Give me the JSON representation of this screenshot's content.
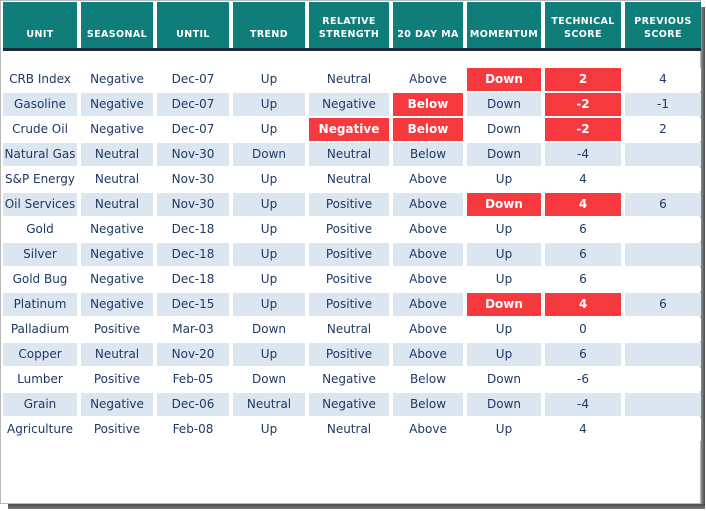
{
  "chart_data": {
    "type": "table",
    "title": "Commodity seasonal / technical score table",
    "columns": [
      {
        "id": "unit",
        "label": "UNIT"
      },
      {
        "id": "seasonal",
        "label": "SEASONAL"
      },
      {
        "id": "until",
        "label": "UNTIL"
      },
      {
        "id": "trend",
        "label": "TREND"
      },
      {
        "id": "relative-strength",
        "label": "RELATIVE\nSTRENGTH"
      },
      {
        "id": "20-day-ma",
        "label": "20 DAY MA"
      },
      {
        "id": "momentum",
        "label": "MOMENTUM"
      },
      {
        "id": "technical-score",
        "label": "TECHNICAL\nSCORE"
      },
      {
        "id": "previous-score",
        "label": "PREVIOUS\nSCORE"
      }
    ],
    "rows": [
      {
        "values": [
          "CRB Index",
          "Negative",
          "Dec-07",
          "Up",
          "Neutral",
          "Above",
          "Down",
          "2",
          "4"
        ],
        "red": [
          6,
          7
        ]
      },
      {
        "values": [
          "Gasoline",
          "Negative",
          "Dec-07",
          "Up",
          "Negative",
          "Below",
          "Down",
          "-2",
          "-1"
        ],
        "red": [
          5,
          7
        ]
      },
      {
        "values": [
          "Crude Oil",
          "Negative",
          "Dec-07",
          "Up",
          "Negative",
          "Below",
          "Down",
          "-2",
          "2"
        ],
        "red": [
          4,
          5,
          7
        ]
      },
      {
        "values": [
          "Natural Gas",
          "Neutral",
          "Nov-30",
          "Down",
          "Neutral",
          "Below",
          "Down",
          "-4",
          ""
        ],
        "red": []
      },
      {
        "values": [
          "S&P Energy",
          "Neutral",
          "Nov-30",
          "Up",
          "Neutral",
          "Above",
          "Up",
          "4",
          ""
        ],
        "red": []
      },
      {
        "values": [
          "Oil Services",
          "Neutral",
          "Nov-30",
          "Up",
          "Positive",
          "Above",
          "Down",
          "4",
          "6"
        ],
        "red": [
          6,
          7
        ]
      },
      {
        "values": [
          "Gold",
          "Negative",
          "Dec-18",
          "Up",
          "Positive",
          "Above",
          "Up",
          "6",
          ""
        ],
        "red": []
      },
      {
        "values": [
          "Silver",
          "Negative",
          "Dec-18",
          "Up",
          "Positive",
          "Above",
          "Up",
          "6",
          ""
        ],
        "red": []
      },
      {
        "values": [
          "Gold Bug",
          "Negative",
          "Dec-18",
          "Up",
          "Positive",
          "Above",
          "Up",
          "6",
          ""
        ],
        "red": []
      },
      {
        "values": [
          "Platinum",
          "Negative",
          "Dec-15",
          "Up",
          "Positive",
          "Above",
          "Down",
          "4",
          "6"
        ],
        "red": [
          6,
          7
        ]
      },
      {
        "values": [
          "Palladium",
          "Positive",
          "Mar-03",
          "Down",
          "Neutral",
          "Above",
          "Up",
          "0",
          ""
        ],
        "red": []
      },
      {
        "values": [
          "Copper",
          "Neutral",
          "Nov-20",
          "Up",
          "Positive",
          "Above",
          "Up",
          "6",
          ""
        ],
        "red": []
      },
      {
        "values": [
          "Lumber",
          "Positive",
          "Feb-05",
          "Down",
          "Negative",
          "Below",
          "Down",
          "-6",
          ""
        ],
        "red": []
      },
      {
        "values": [
          "Grain",
          "Negative",
          "Dec-06",
          "Neutral",
          "Negative",
          "Below",
          "Down",
          "-4",
          ""
        ],
        "red": []
      },
      {
        "values": [
          "Agriculture",
          "Positive",
          "Feb-08",
          "Up",
          "Neutral",
          "Above",
          "Up",
          "4",
          ""
        ],
        "red": []
      }
    ],
    "layout": {
      "legend": "none",
      "grid": "off",
      "alternating_rows": true
    }
  },
  "colors": {
    "header_background": "#0f7d7a",
    "header_text": "#ffffff",
    "header_bottom_border": "#1c2b3a",
    "row_default": "#ffffff",
    "row_alternate": "#dce6f1",
    "cell_text": "#1f3864",
    "alert_background": "#f4393f",
    "alert_text": "#ffffff"
  }
}
